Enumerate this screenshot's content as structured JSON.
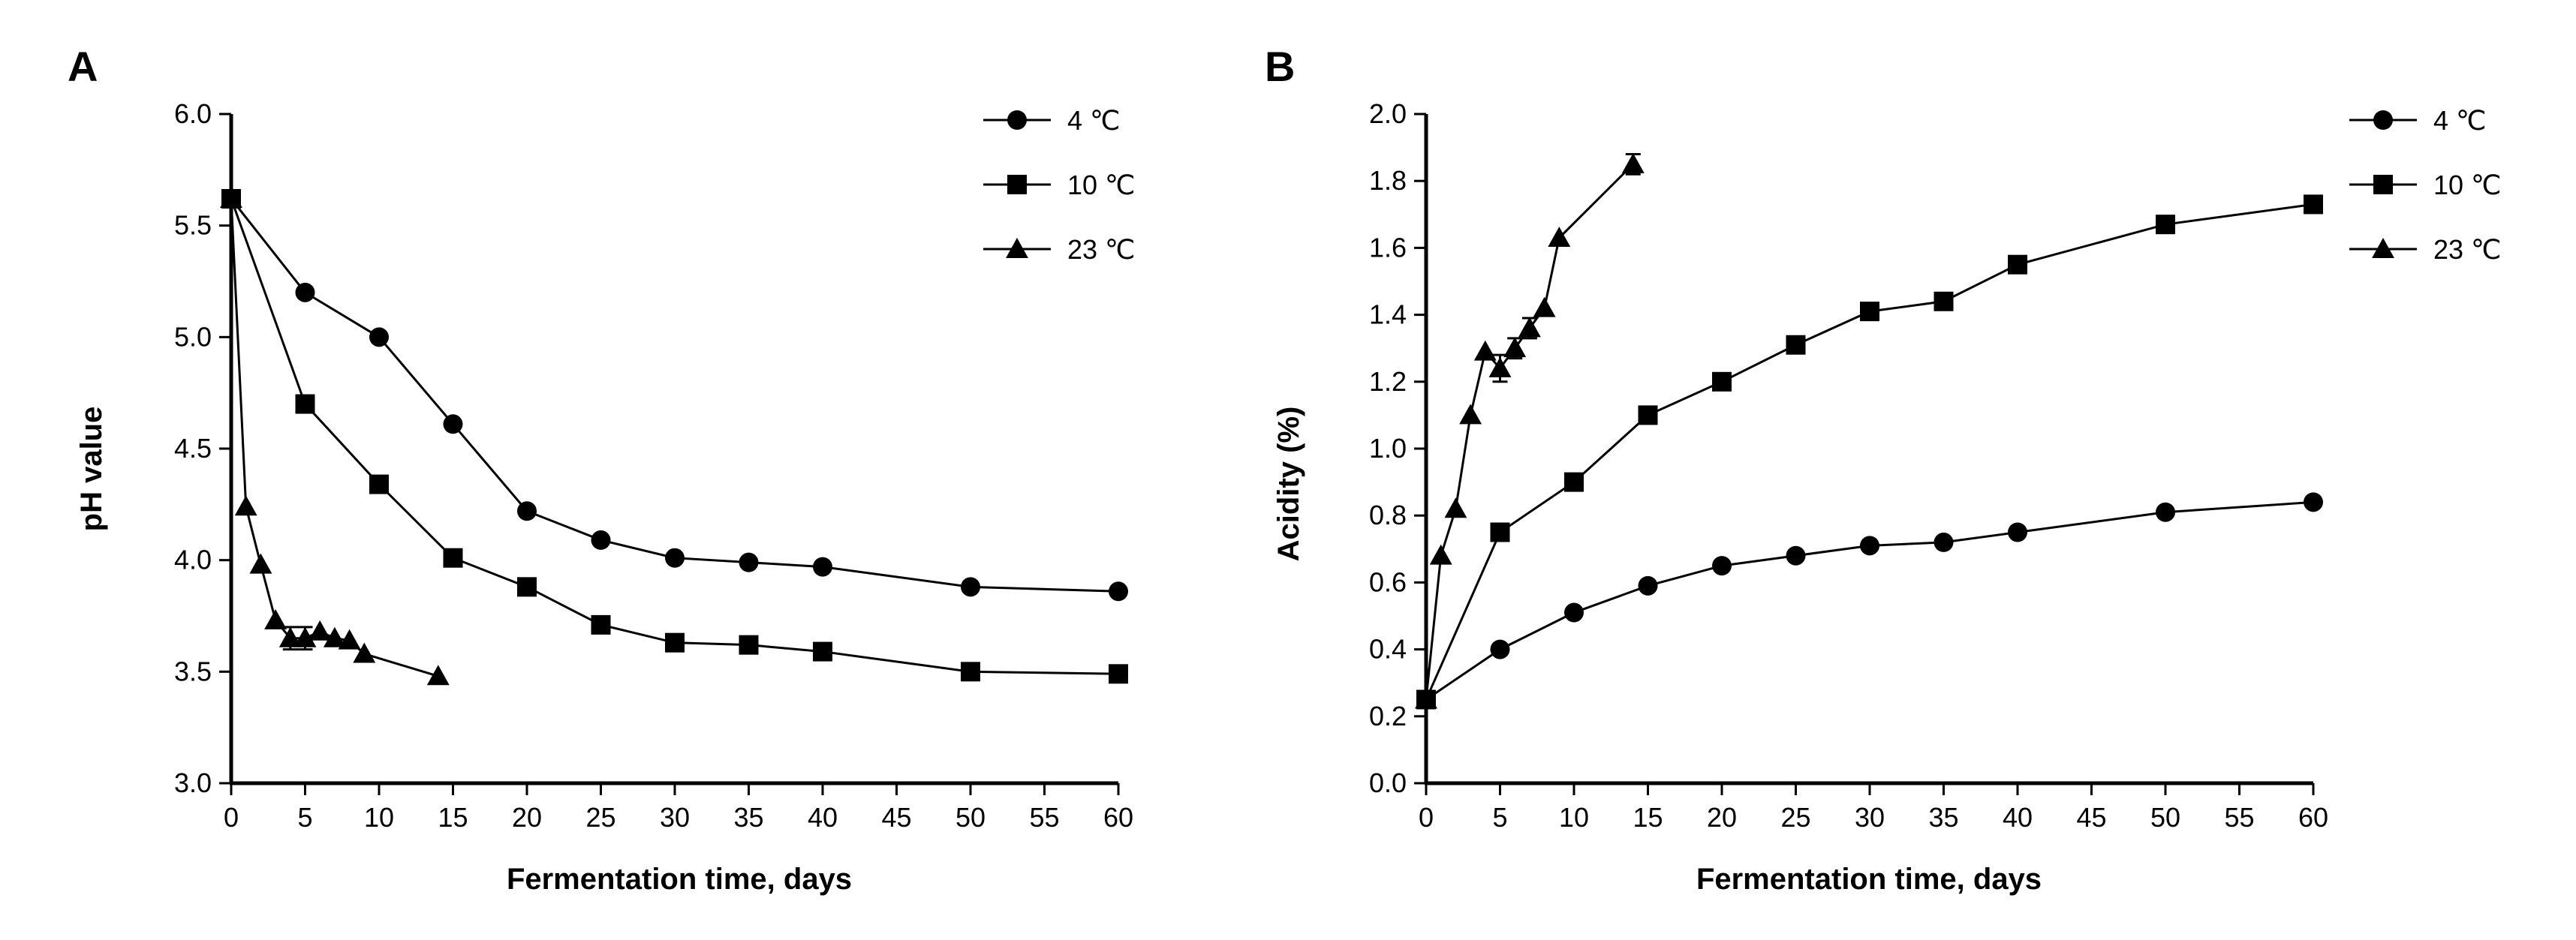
{
  "chart_data": [
    {
      "type": "line",
      "panel_label": "A",
      "xlabel": "Fermentation time, days",
      "ylabel": "pH value",
      "xlim": [
        0,
        60
      ],
      "ylim": [
        3.0,
        6.0
      ],
      "xticks": [
        0,
        5,
        10,
        15,
        20,
        25,
        30,
        35,
        40,
        45,
        50,
        55,
        60
      ],
      "yticks": [
        3.0,
        3.5,
        4.0,
        4.5,
        5.0,
        5.5,
        6.0
      ],
      "ytick_decimals": 1,
      "legend_position": "top-right",
      "series": [
        {
          "name": "4 ℃",
          "marker": "circle",
          "x": [
            0,
            5,
            10,
            15,
            20,
            25,
            30,
            35,
            40,
            50,
            60
          ],
          "y": [
            5.62,
            5.2,
            5.0,
            4.61,
            4.22,
            4.09,
            4.01,
            3.99,
            3.97,
            3.88,
            3.86
          ]
        },
        {
          "name": "10 ℃",
          "marker": "square",
          "x": [
            0,
            5,
            10,
            15,
            20,
            25,
            30,
            35,
            40,
            50,
            60
          ],
          "y": [
            5.62,
            4.7,
            4.34,
            4.01,
            3.88,
            3.71,
            3.63,
            3.62,
            3.59,
            3.5,
            3.49
          ]
        },
        {
          "name": "23 ℃",
          "marker": "triangle",
          "x": [
            0,
            1,
            2,
            3,
            4,
            5,
            6,
            7,
            8,
            9,
            14
          ],
          "y": [
            5.62,
            4.24,
            3.98,
            3.73,
            3.65,
            3.65,
            3.68,
            3.65,
            3.64,
            3.58,
            3.48
          ],
          "err": [
            0,
            0,
            0,
            0,
            0.05,
            0.05,
            0,
            0,
            0,
            0,
            0
          ]
        }
      ]
    },
    {
      "type": "line",
      "panel_label": "B",
      "xlabel": "Fermentation time, days",
      "ylabel": "Acidity (%)",
      "xlim": [
        0,
        60
      ],
      "ylim": [
        0.0,
        2.0
      ],
      "xticks": [
        0,
        5,
        10,
        15,
        20,
        25,
        30,
        35,
        40,
        45,
        50,
        55,
        60
      ],
      "yticks": [
        0.0,
        0.2,
        0.4,
        0.6,
        0.8,
        1.0,
        1.2,
        1.4,
        1.6,
        1.8,
        2.0
      ],
      "ytick_decimals": 1,
      "legend_position": "top-right",
      "series": [
        {
          "name": "4 ℃",
          "marker": "circle",
          "x": [
            0,
            5,
            10,
            15,
            20,
            25,
            30,
            35,
            40,
            50,
            60
          ],
          "y": [
            0.25,
            0.4,
            0.51,
            0.59,
            0.65,
            0.68,
            0.71,
            0.72,
            0.75,
            0.81,
            0.84
          ]
        },
        {
          "name": "10 ℃",
          "marker": "square",
          "x": [
            0,
            5,
            10,
            15,
            20,
            25,
            30,
            35,
            40,
            50,
            60
          ],
          "y": [
            0.25,
            0.75,
            0.9,
            1.1,
            1.2,
            1.31,
            1.41,
            1.44,
            1.55,
            1.67,
            1.73
          ]
        },
        {
          "name": "23 ℃",
          "marker": "triangle",
          "x": [
            0,
            1,
            2,
            3,
            4,
            5,
            6,
            7,
            8,
            9,
            14
          ],
          "y": [
            0.25,
            0.68,
            0.82,
            1.1,
            1.29,
            1.24,
            1.3,
            1.36,
            1.42,
            1.63,
            1.85
          ],
          "err": [
            0,
            0,
            0,
            0,
            0,
            0.04,
            0.03,
            0.03,
            0,
            0,
            0.03
          ]
        }
      ]
    }
  ]
}
